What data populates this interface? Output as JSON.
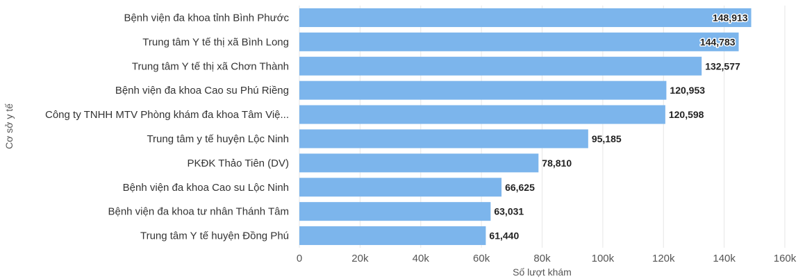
{
  "chart_data": {
    "type": "bar",
    "orientation": "horizontal",
    "title": "",
    "xlabel": "Số lượt khám",
    "ylabel": "Cơ sở y tế",
    "categories": [
      "Bệnh viện đa khoa tỉnh Bình Phước",
      "Trung tâm Y tế thị xã Bình Long",
      "Trung tâm Y tế thị xã Chơn Thành",
      "Bệnh viện đa khoa Cao su Phú Riềng",
      "Công ty TNHH MTV Phòng khám đa khoa Tâm Việ...",
      "Trung tâm y tế huyện Lộc Ninh",
      "PKĐK Thảo Tiên (DV)",
      "Bệnh viện đa khoa Cao su Lộc Ninh",
      "Bệnh viện đa khoa tư nhân Thánh Tâm",
      "Trung tâm Y tế huyện Đồng Phú"
    ],
    "values": [
      148913,
      144783,
      132577,
      120953,
      120598,
      95185,
      78810,
      66625,
      63031,
      61440
    ],
    "value_labels": [
      "148,913",
      "144,783",
      "132,577",
      "120,953",
      "120,598",
      "95,185",
      "78,810",
      "66,625",
      "63,031",
      "61,440"
    ],
    "xlim": [
      0,
      160000
    ],
    "x_ticks": [
      0,
      20000,
      40000,
      60000,
      80000,
      100000,
      120000,
      140000,
      160000
    ],
    "x_tick_labels": [
      "0",
      "20k",
      "40k",
      "60k",
      "80k",
      "100k",
      "120k",
      "140k",
      "160k"
    ],
    "grid": true,
    "legend": "none",
    "colors": {
      "bar": "#7cb5ec",
      "grid": "#e6e6e6"
    }
  }
}
